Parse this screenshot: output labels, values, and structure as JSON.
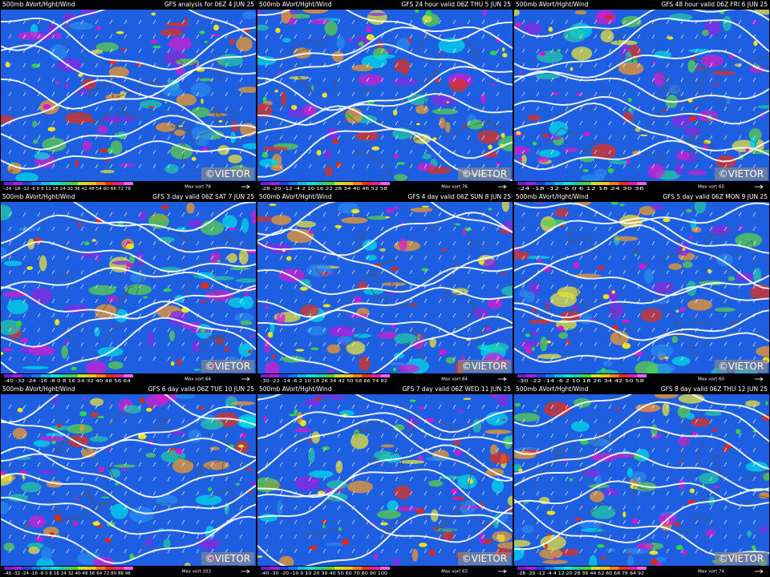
{
  "watermark": "©VIETOR",
  "panels": [
    {
      "title": "500mb AVort/Hght/Wind",
      "run": "GFS analysis for 06Z  4 JUN 25",
      "scale": "-24 -18 -12 -6 0 6 12 18 24 30 36 42 48 54 60 66 72 78",
      "max": "Max vort 78"
    },
    {
      "title": "500mb AVort/Hght/Wind",
      "run": "GFS 24 hour valid 06Z THU  5 JUN 25",
      "scale": "-28 -20 -12 -4 2 10 16 22 28 34 40 46 52 58",
      "max": "Max vort 76"
    },
    {
      "title": "500mb AVort/Hght/Wind",
      "run": "GFS 48 hour valid 06Z FRI  6 JUN 25",
      "scale": "-24 -18 -12 -6 0 6 12 18 24 30 36",
      "max": "Max vort 65"
    },
    {
      "title": "500mb AVort/Hght/Wind",
      "run": "GFS 3 day valid 06Z SAT  7 JUN 25",
      "scale": "-40 -32 -24 -16 -8 0 8 16 24 32 40 48 56 64",
      "max": "Max vort 64"
    },
    {
      "title": "500mb AVort/Hght/Wind",
      "run": "GFS 4 day valid 06Z SUN  8 JUN 25",
      "scale": "-30 -22 -14 -6 2 10 18 26 34 42 50 58 66 74 82",
      "max": "Max vort 84"
    },
    {
      "title": "500mb AVort/Hght/Wind",
      "run": "GFS 5 day valid 06Z MON  9 JUN 25",
      "scale": "-30 -22 -14 -6 2 10 18 26 34 42 50 58",
      "max": "Max vort 60"
    },
    {
      "title": "500mb AVort/Hght/Wind",
      "run": "GFS 6 day valid 06Z TUE 10 JUN 25",
      "scale": "-40 -32 -24 -16 -8 0 8 16 24 32 40 48 56 64 72 80 88 96",
      "max": "Max vort 103"
    },
    {
      "title": "500mb AVort/Hght/Wind",
      "run": "GFS 7 day valid 06Z WED 11 JUN 25",
      "scale": "-40 -30 -20 -10 0 10 20 30 40 50 60 70 80 90 100",
      "max": "Max vort 65"
    },
    {
      "title": "500mb AVort/Hght/Wind",
      "run": "GFS 8 day valid 06Z THU 12 JUN 25",
      "scale": "-28 -20 -12 -4 4 12 20 28 36 44 52 60 68 76 84 92",
      "max": "Max vort 74"
    }
  ]
}
